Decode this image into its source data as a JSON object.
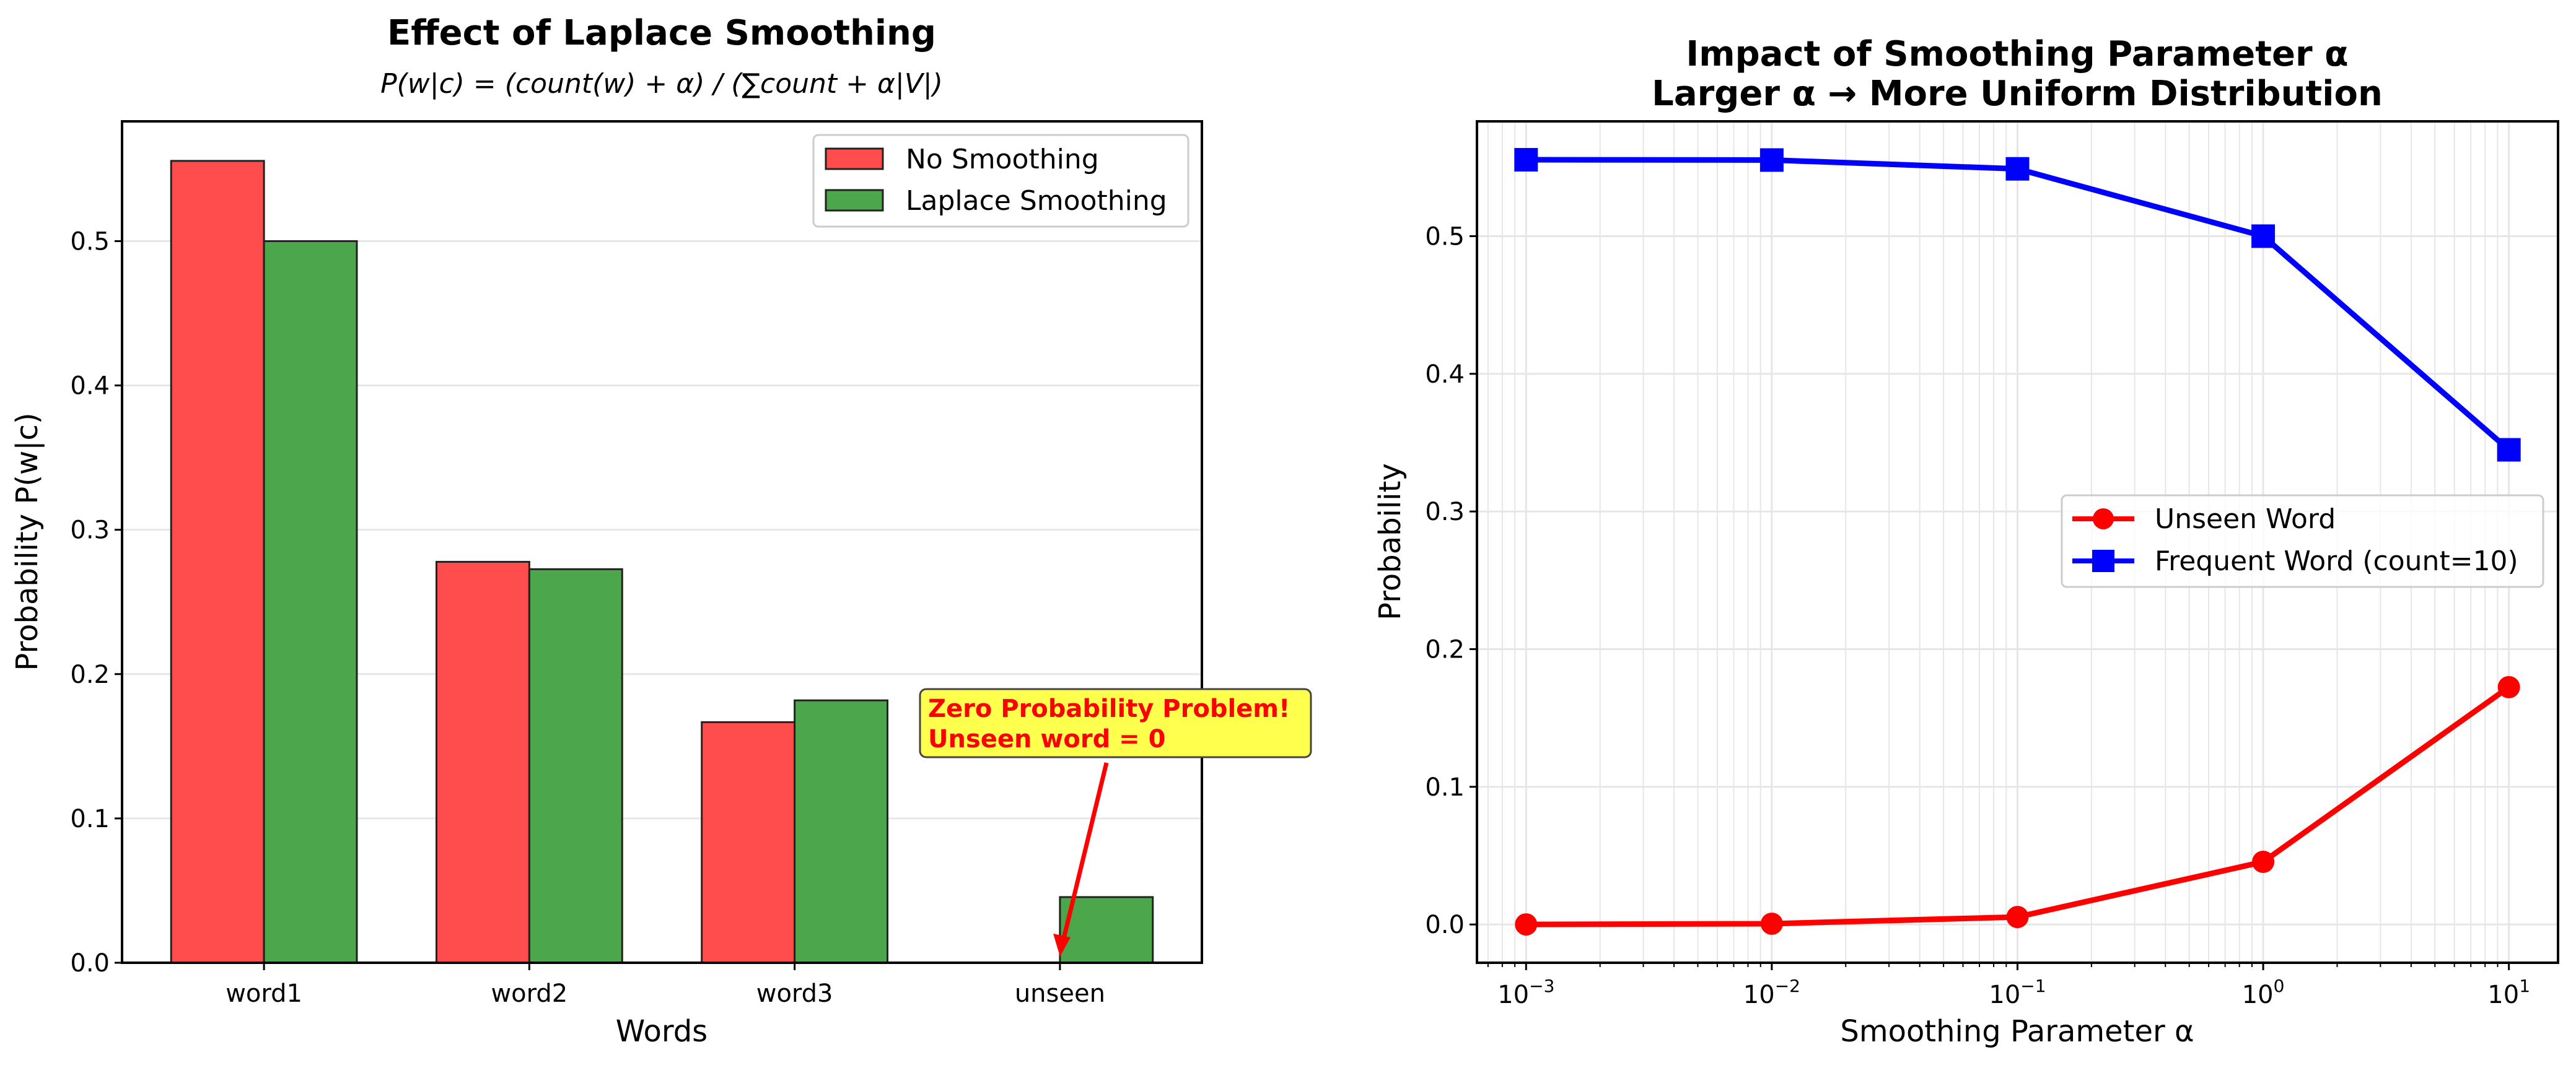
{
  "chart_data": [
    {
      "type": "bar",
      "title": "Effect of Laplace Smoothing",
      "subtitle": "P(w|c) = (count(w) + α) / (∑count + α|V|)",
      "xlabel": "Words",
      "ylabel": "Probability P(w|c)",
      "categories": [
        "word1",
        "word2",
        "word3",
        "unseen"
      ],
      "series": [
        {
          "name": "No Smoothing",
          "color": "#ff4d4d",
          "values": [
            0.5556,
            0.2778,
            0.1667,
            0.0
          ]
        },
        {
          "name": "Laplace Smoothing",
          "color": "#4ca64c",
          "values": [
            0.5,
            0.2727,
            0.1818,
            0.0455
          ]
        }
      ],
      "ylim": [
        0,
        0.583
      ],
      "yticks": [
        "0.0",
        "0.1",
        "0.2",
        "0.3",
        "0.4",
        "0.5"
      ],
      "grid": "y",
      "legend": "upper right",
      "annotation": {
        "lines": [
          "Zero Probability Problem!",
          "Unseen word = 0"
        ],
        "color": "#ff0000",
        "box_color": "#ffff4d",
        "target": {
          "category": "unseen",
          "value": 0.0
        }
      }
    },
    {
      "type": "line",
      "title": "Impact of Smoothing Parameter α",
      "subtitle": "Larger α → More Uniform Distribution",
      "xlabel": "Smoothing Parameter α",
      "ylabel": "Probability",
      "xscale": "log",
      "x": [
        0.001,
        0.01,
        0.1,
        1,
        10
      ],
      "xticks": [
        "10^-3",
        "10^-2",
        "10^-1",
        "10^0",
        "10^1"
      ],
      "xlim": [
        0.000631,
        15.85
      ],
      "series": [
        {
          "name": "Unseen Word",
          "color": "#ff0000",
          "marker": "circle",
          "values": [
            5.56e-05,
            0.000555,
            0.00543,
            0.0455,
            0.1724
          ]
        },
        {
          "name": "Frequent Word (count=10)",
          "color": "#0000ff",
          "marker": "square",
          "values": [
            0.5555,
            0.5553,
            0.5489,
            0.5,
            0.3448
          ]
        }
      ],
      "ylim": [
        -0.0278,
        0.5834
      ],
      "yticks": [
        "0.0",
        "0.1",
        "0.2",
        "0.3",
        "0.4",
        "0.5"
      ],
      "grid": "both",
      "legend": "center right"
    }
  ]
}
